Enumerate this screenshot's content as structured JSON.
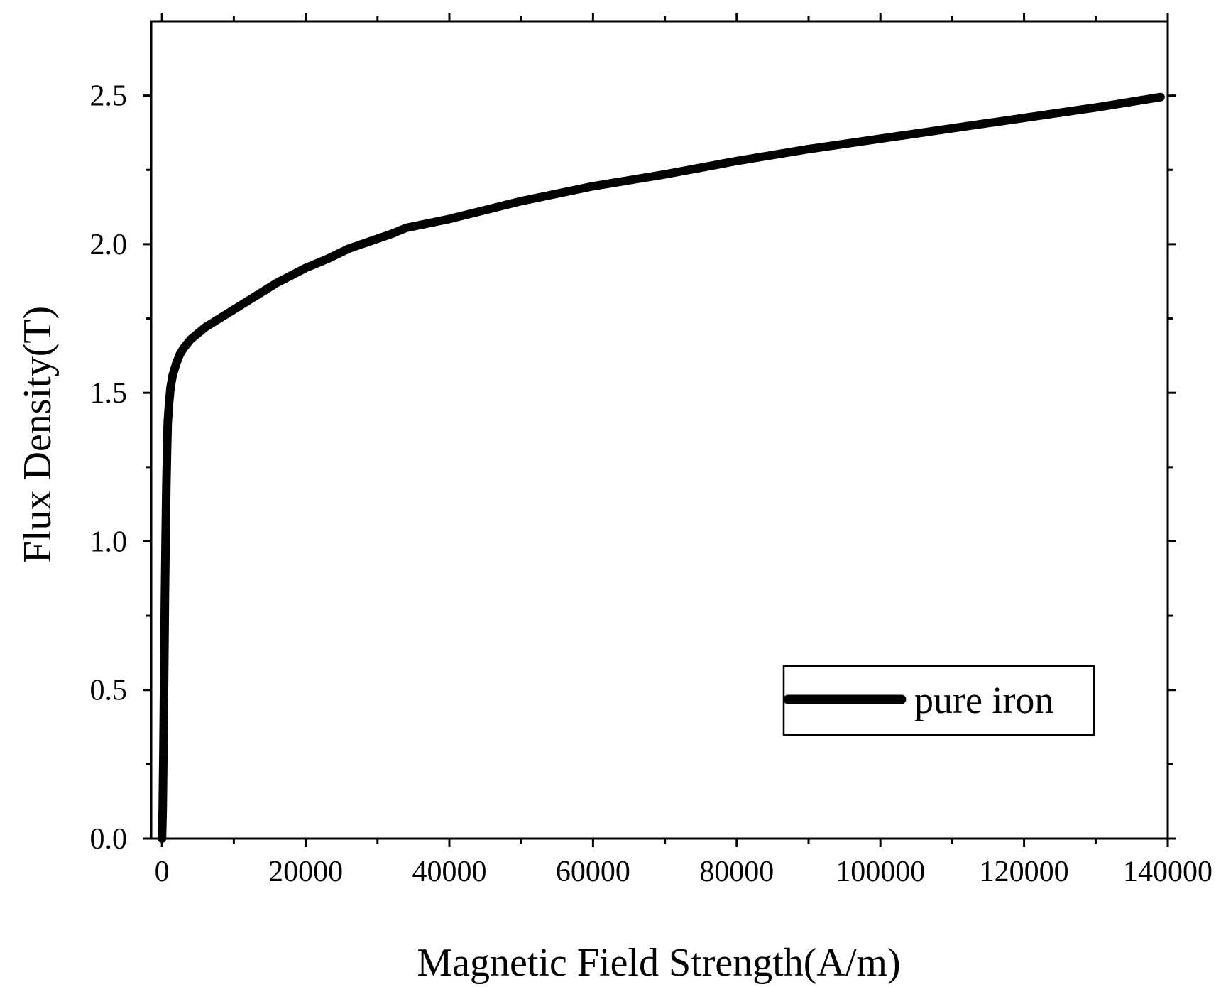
{
  "chart_data": {
    "type": "line",
    "title": "",
    "xlabel": "Magnetic Field Strength(A/m)",
    "ylabel": "Flux Density(T)",
    "xlim": [
      -1500,
      140000
    ],
    "ylim": [
      0,
      2.75
    ],
    "xticks": [
      0,
      20000,
      40000,
      60000,
      80000,
      100000,
      120000,
      140000
    ],
    "xtick_labels": [
      "0",
      "20000",
      "40000",
      "60000",
      "80000",
      "100000",
      "120000",
      "140000"
    ],
    "yticks": [
      0.0,
      0.5,
      1.0,
      1.5,
      2.0,
      2.5
    ],
    "ytick_labels": [
      "0.0",
      "0.5",
      "1.0",
      "1.5",
      "2.0",
      "2.5"
    ],
    "grid": false,
    "legend_position": "bottom-right",
    "series": [
      {
        "name": "pure iron",
        "color": "#000000",
        "x": [
          0,
          100,
          200,
          300,
          400,
          500,
          600,
          700,
          800,
          1000,
          1200,
          1500,
          2000,
          2500,
          3000,
          4000,
          5000,
          6000,
          8000,
          10000,
          12000,
          14000,
          16000,
          18000,
          20000,
          23000,
          26000,
          29000,
          32000,
          34000,
          37000,
          40000,
          45000,
          50000,
          55000,
          60000,
          65000,
          70000,
          80000,
          90000,
          100000,
          110000,
          120000,
          130000,
          139000
        ],
        "y": [
          0.0,
          0.1,
          0.3,
          0.55,
          0.8,
          1.0,
          1.18,
          1.3,
          1.4,
          1.47,
          1.52,
          1.56,
          1.6,
          1.63,
          1.65,
          1.68,
          1.7,
          1.72,
          1.75,
          1.78,
          1.81,
          1.84,
          1.87,
          1.895,
          1.92,
          1.95,
          1.985,
          2.01,
          2.035,
          2.055,
          2.07,
          2.085,
          2.115,
          2.145,
          2.17,
          2.195,
          2.215,
          2.235,
          2.28,
          2.32,
          2.355,
          2.39,
          2.425,
          2.46,
          2.495
        ]
      }
    ]
  }
}
